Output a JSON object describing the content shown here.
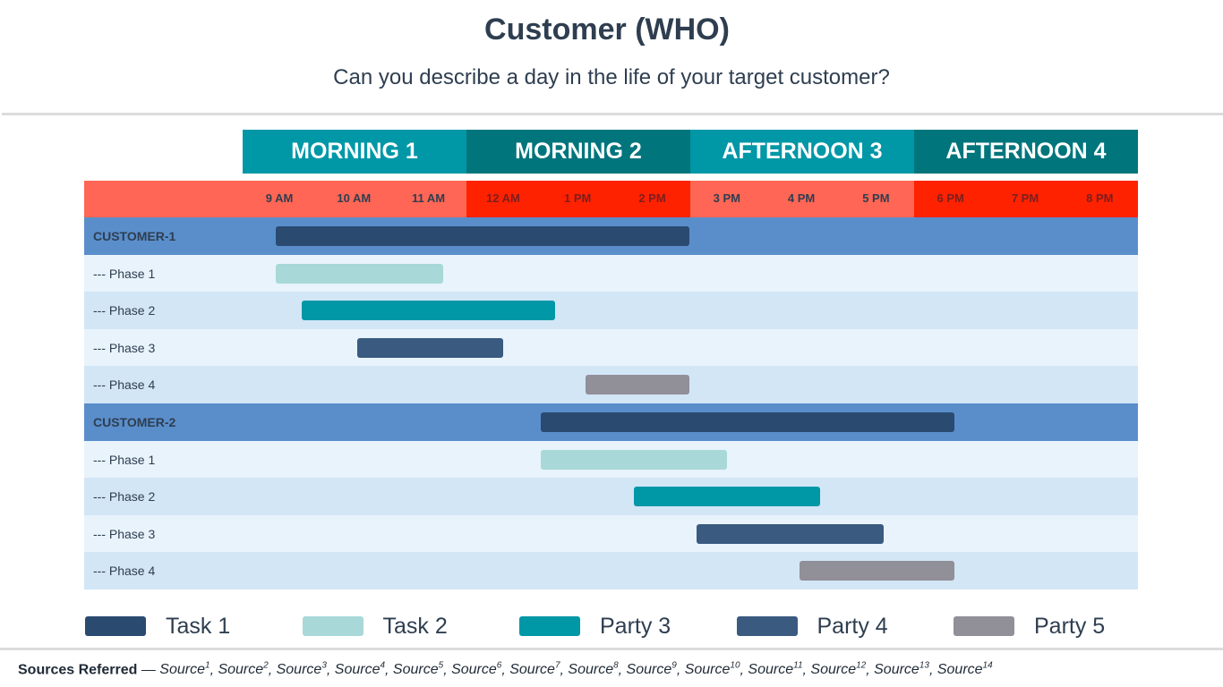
{
  "title": "Customer (WHO)",
  "subtitle": "Can you describe a day in the life of your target customer?",
  "chart_data": {
    "type": "gantt",
    "periods": [
      {
        "label": "MORNING 1",
        "color": "#0097a7"
      },
      {
        "label": "MORNING 2",
        "color": "#00757c"
      },
      {
        "label": "AFTERNOON 3",
        "color": "#0097a7"
      },
      {
        "label": "AFTERNOON 4",
        "color": "#00757c"
      }
    ],
    "hours": [
      "9 AM",
      "10 AM",
      "11 AM",
      "12 AM",
      "1 PM",
      "2 PM",
      "3 PM",
      "4 PM",
      "5 PM",
      "6 PM",
      "7 PM",
      "8 PM"
    ],
    "hour_band_colors": [
      "#ff6655",
      "#ff2200",
      "#ff6655",
      "#ff2200"
    ],
    "rows": [
      {
        "label": "CUSTOMER-1",
        "type": "customer",
        "start": 8.95,
        "end": 14.5,
        "task": "Task 1"
      },
      {
        "label": "--- Phase 1",
        "type": "phase",
        "start": 8.95,
        "end": 11.2,
        "task": "Task 2"
      },
      {
        "label": "--- Phase 2",
        "type": "phase",
        "start": 9.3,
        "end": 12.7,
        "task": "Party 3"
      },
      {
        "label": "--- Phase 3",
        "type": "phase",
        "start": 10.05,
        "end": 12.0,
        "task": "Party 4"
      },
      {
        "label": "--- Phase 4",
        "type": "phase",
        "start": 13.1,
        "end": 14.5,
        "task": "Party 5"
      },
      {
        "label": "CUSTOMER-2",
        "type": "customer",
        "start": 12.5,
        "end": 18.05,
        "task": "Task 1"
      },
      {
        "label": "--- Phase 1",
        "type": "phase",
        "start": 12.5,
        "end": 15.0,
        "task": "Task 2"
      },
      {
        "label": "--- Phase 2",
        "type": "phase",
        "start": 13.75,
        "end": 16.25,
        "task": "Party 3"
      },
      {
        "label": "--- Phase 3",
        "type": "phase",
        "start": 14.6,
        "end": 17.1,
        "task": "Party 4"
      },
      {
        "label": "--- Phase 4",
        "type": "phase",
        "start": 15.97,
        "end": 18.05,
        "task": "Party 5"
      }
    ],
    "legend": [
      {
        "name": "Task 1",
        "color": "#2a4a70"
      },
      {
        "name": "Task 2",
        "color": "#a8d8d8"
      },
      {
        "name": "Party 3",
        "color": "#0097a7"
      },
      {
        "name": "Party 4",
        "color": "#3a5a80"
      },
      {
        "name": "Party 5",
        "color": "#918f98"
      }
    ],
    "row_colors": {
      "customer": "#5a8ecb",
      "phase_a": "#e8f3fc",
      "phase_b": "#d2e6f6"
    }
  },
  "sources": {
    "lead": "Sources Referred",
    "dash": "—",
    "items": [
      "Source",
      "Source",
      "Source",
      "Source",
      "Source",
      "Source",
      "Source",
      "Source",
      "Source",
      "Source",
      "Source",
      "Source",
      "Source",
      "Source"
    ],
    "sups": [
      "1",
      "2",
      "3",
      "4",
      "5",
      "6",
      "7",
      "8",
      "9",
      "10",
      "11",
      "12",
      "13",
      "14"
    ]
  }
}
